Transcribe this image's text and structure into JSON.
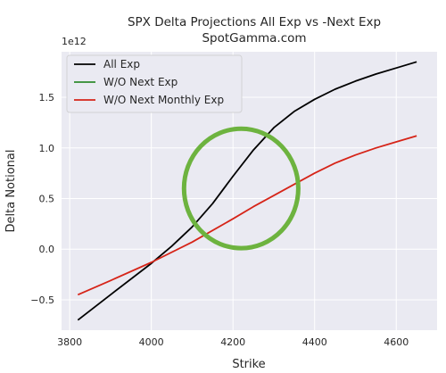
{
  "chart_data": {
    "type": "line",
    "title": "SPX Delta Projections All Exp vs -Next Exp",
    "subtitle": "SpotGamma.com",
    "xlabel": "Strike",
    "ylabel": "Delta Notional",
    "y_scale_label": "1e12",
    "xlim": [
      3780,
      4700
    ],
    "ylim": [
      -0.8,
      1.95
    ],
    "x_ticks": [
      3800,
      4000,
      4200,
      4400,
      4600
    ],
    "y_ticks": [
      -0.5,
      0.0,
      0.5,
      1.0,
      1.5
    ],
    "y_tick_labels": [
      "−0.5",
      "0.0",
      "0.5",
      "1.0",
      "1.5"
    ],
    "grid": true,
    "legend_position": "top-left",
    "background": "#eaeaf2",
    "series": [
      {
        "name": "All Exp",
        "color": "#000000",
        "x": [
          3820,
          3900,
          4000,
          4050,
          4100,
          4150,
          4200,
          4250,
          4300,
          4350,
          4400,
          4450,
          4500,
          4550,
          4600,
          4650
        ],
        "y": [
          -0.7,
          -0.45,
          -0.14,
          0.03,
          0.22,
          0.45,
          0.72,
          0.98,
          1.2,
          1.36,
          1.48,
          1.58,
          1.66,
          1.73,
          1.79,
          1.85
        ]
      },
      {
        "name": "W/O Next Exp",
        "color": "#2e8b2e",
        "x": [],
        "y": []
      },
      {
        "name": "W/O Next Monthly Exp",
        "color": "#d62418",
        "x": [
          3820,
          3900,
          4000,
          4100,
          4200,
          4250,
          4300,
          4350,
          4400,
          4450,
          4500,
          4550,
          4600,
          4650
        ],
        "y": [
          -0.45,
          -0.31,
          -0.13,
          0.07,
          0.3,
          0.42,
          0.53,
          0.64,
          0.75,
          0.85,
          0.93,
          1.0,
          1.06,
          1.12
        ]
      }
    ],
    "annotation": {
      "shape": "circle",
      "color": "#6db33f",
      "center": [
        4220,
        0.6
      ],
      "radius_x": 140,
      "radius_y": 0.59
    }
  }
}
